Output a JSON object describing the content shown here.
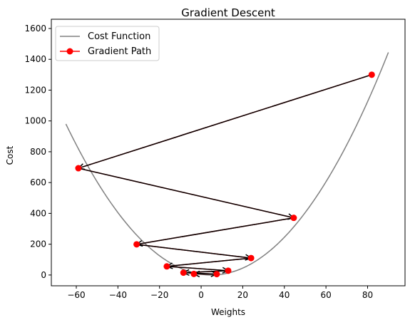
{
  "chart_data": {
    "type": "line",
    "title": "Gradient Descent",
    "xlabel": "Weights",
    "ylabel": "Cost",
    "xlim": [
      -72,
      98
    ],
    "ylim": [
      -70,
      1660
    ],
    "x_ticks": [
      -60,
      -40,
      -20,
      0,
      20,
      40,
      60,
      80
    ],
    "y_ticks": [
      0,
      200,
      400,
      600,
      800,
      1000,
      1200,
      1400,
      1600
    ],
    "grid": false,
    "legend_position": "top-left",
    "series": [
      {
        "name": "Cost Function",
        "style": "curve",
        "color": "#808080",
        "function": "0.2*(w-5)^2",
        "x_range": [
          -65,
          90
        ]
      },
      {
        "name": "Gradient Path",
        "style": "line-markers",
        "color": "#ff0000",
        "arrow_color": "#000000",
        "points": [
          {
            "x": 82.0,
            "y": 1300
          },
          {
            "x": -59.0,
            "y": 693
          },
          {
            "x": 44.5,
            "y": 371
          },
          {
            "x": -31.0,
            "y": 199
          },
          {
            "x": 24.0,
            "y": 110
          },
          {
            "x": -16.5,
            "y": 56
          },
          {
            "x": 13.0,
            "y": 28
          },
          {
            "x": -8.5,
            "y": 15
          },
          {
            "x": 7.5,
            "y": 6
          },
          {
            "x": -3.5,
            "y": 7
          }
        ]
      }
    ]
  }
}
